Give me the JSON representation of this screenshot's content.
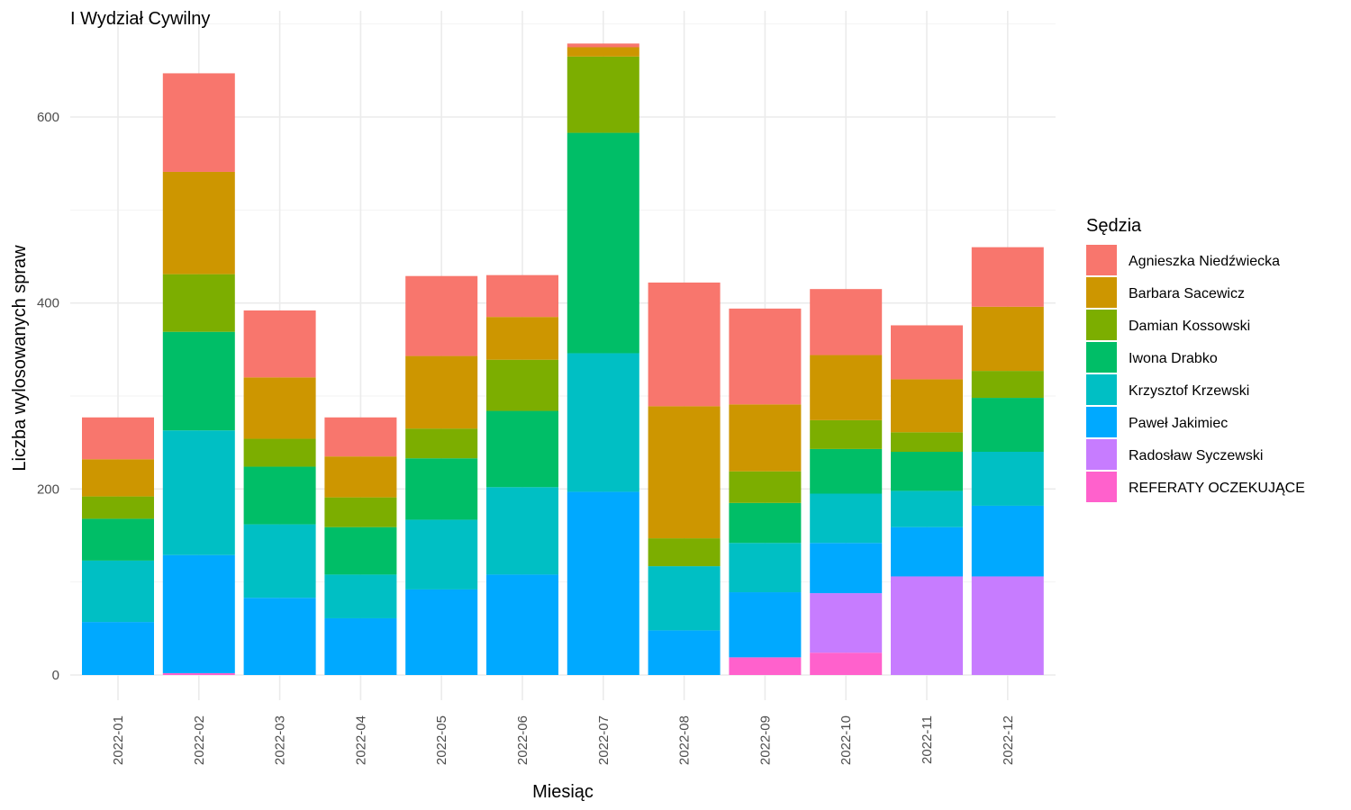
{
  "chart_data": {
    "type": "bar",
    "stacked": true,
    "title": "I Wydział Cywilny",
    "xlabel": "Miesiąc",
    "ylabel": "Liczba wylosowanych spraw",
    "ylim": [
      0,
      700
    ],
    "yticks": [
      0,
      200,
      400,
      600
    ],
    "grid": true,
    "legend_title": "Sędzia",
    "legend_position": "right",
    "categories": [
      "2022-01",
      "2022-02",
      "2022-03",
      "2022-04",
      "2022-05",
      "2022-06",
      "2022-07",
      "2022-08",
      "2022-09",
      "2022-10",
      "2022-11",
      "2022-12"
    ],
    "series": [
      {
        "name": "Agnieszka Niedźwiecka",
        "color": "#F8766D",
        "values": [
          45,
          106,
          72,
          42,
          86,
          45,
          4,
          133,
          103,
          71,
          58,
          64
        ]
      },
      {
        "name": "Barbara Sacewicz",
        "color": "#CD9600",
        "values": [
          40,
          110,
          66,
          44,
          78,
          46,
          10,
          142,
          72,
          70,
          57,
          69
        ]
      },
      {
        "name": "Damian Kossowski",
        "color": "#7CAE00",
        "values": [
          24,
          62,
          30,
          32,
          32,
          55,
          82,
          30,
          34,
          31,
          21,
          29
        ]
      },
      {
        "name": "Iwona Drabko",
        "color": "#00BE67",
        "values": [
          45,
          106,
          62,
          51,
          66,
          82,
          237,
          0,
          43,
          48,
          42,
          58
        ]
      },
      {
        "name": "Krzysztof Krzewski",
        "color": "#00BFC4",
        "values": [
          66,
          134,
          79,
          47,
          75,
          94,
          149,
          69,
          53,
          53,
          39,
          58
        ]
      },
      {
        "name": "Paweł Jakimiec",
        "color": "#00A9FF",
        "values": [
          57,
          127,
          83,
          61,
          92,
          108,
          197,
          48,
          70,
          54,
          53,
          76
        ]
      },
      {
        "name": "Radosław Syczewski",
        "color": "#C77CFF",
        "values": [
          0,
          0,
          0,
          0,
          0,
          0,
          0,
          0,
          0,
          64,
          106,
          106
        ]
      },
      {
        "name": "REFERATY OCZEKUJĄCE",
        "color": "#FF61CC",
        "values": [
          0,
          2,
          0,
          0,
          0,
          0,
          0,
          0,
          19,
          24,
          0,
          0
        ]
      }
    ]
  }
}
